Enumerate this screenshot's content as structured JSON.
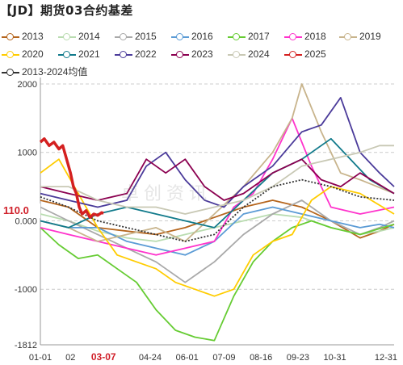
{
  "title": "【JD】期货03合约基差",
  "watermark": "卓创资讯",
  "current_value_label": "110.0",
  "chart_data": {
    "type": "line",
    "ylim": [
      -1812,
      2000
    ],
    "yticks": [
      "2000",
      "1000",
      "0.000",
      "-1000",
      "-1812"
    ],
    "ytick_values": [
      2000,
      1000,
      0,
      -1000,
      -1812
    ],
    "xticks": [
      "01-01",
      "02",
      "03-07",
      "04-24",
      "06-01",
      "07-09",
      "08-16",
      "09-23",
      "10-31",
      "12-31"
    ],
    "xtick_days": [
      1,
      32,
      66,
      114,
      152,
      190,
      228,
      266,
      304,
      365
    ],
    "highlight_xtick": "03-07",
    "grid": "horizontal-dashed",
    "series": [
      {
        "name": "2013",
        "color": "#b5651d",
        "points": [
          [
            1,
            300
          ],
          [
            30,
            200
          ],
          [
            60,
            -100
          ],
          [
            90,
            -150
          ],
          [
            120,
            -200
          ],
          [
            150,
            -100
          ],
          [
            180,
            50
          ],
          [
            210,
            200
          ],
          [
            240,
            300
          ],
          [
            270,
            200
          ],
          [
            300,
            0
          ],
          [
            330,
            -250
          ],
          [
            350,
            -150
          ],
          [
            365,
            -50
          ]
        ]
      },
      {
        "name": "2014",
        "color": "#b9dcb0",
        "points": [
          [
            1,
            100
          ],
          [
            30,
            0
          ],
          [
            60,
            -150
          ],
          [
            90,
            -250
          ],
          [
            120,
            -300
          ],
          [
            150,
            -200
          ],
          [
            180,
            -100
          ],
          [
            210,
            0
          ],
          [
            240,
            100
          ],
          [
            270,
            50
          ],
          [
            300,
            -100
          ],
          [
            330,
            -200
          ],
          [
            350,
            -150
          ],
          [
            365,
            -100
          ]
        ]
      },
      {
        "name": "2015",
        "color": "#a9a9a9",
        "points": [
          [
            1,
            200
          ],
          [
            30,
            0
          ],
          [
            60,
            -200
          ],
          [
            90,
            -400
          ],
          [
            120,
            -600
          ],
          [
            150,
            -900
          ],
          [
            180,
            -600
          ],
          [
            210,
            -200
          ],
          [
            240,
            100
          ],
          [
            270,
            300
          ],
          [
            300,
            0
          ],
          [
            330,
            -200
          ],
          [
            350,
            -100
          ],
          [
            365,
            0
          ]
        ]
      },
      {
        "name": "2016",
        "color": "#5b9bd5",
        "points": [
          [
            1,
            0
          ],
          [
            30,
            -100
          ],
          [
            60,
            -100
          ],
          [
            90,
            -300
          ],
          [
            120,
            -400
          ],
          [
            150,
            -500
          ],
          [
            180,
            -300
          ],
          [
            210,
            100
          ],
          [
            240,
            200
          ],
          [
            270,
            100
          ],
          [
            300,
            0
          ],
          [
            330,
            -100
          ],
          [
            350,
            -50
          ],
          [
            365,
            -100
          ]
        ]
      },
      {
        "name": "2017",
        "color": "#66cc33",
        "points": [
          [
            1,
            -100
          ],
          [
            20,
            -350
          ],
          [
            40,
            -550
          ],
          [
            60,
            -500
          ],
          [
            80,
            -700
          ],
          [
            100,
            -900
          ],
          [
            120,
            -1300
          ],
          [
            140,
            -1600
          ],
          [
            160,
            -1700
          ],
          [
            180,
            -1750
          ],
          [
            200,
            -1100
          ],
          [
            220,
            -600
          ],
          [
            240,
            -300
          ],
          [
            260,
            -100
          ],
          [
            280,
            0
          ],
          [
            300,
            -100
          ],
          [
            330,
            -200
          ],
          [
            365,
            -50
          ]
        ]
      },
      {
        "name": "2018",
        "color": "#ff33cc",
        "points": [
          [
            1,
            -100
          ],
          [
            30,
            -200
          ],
          [
            60,
            -300
          ],
          [
            90,
            -400
          ],
          [
            120,
            -500
          ],
          [
            150,
            -400
          ],
          [
            180,
            -300
          ],
          [
            200,
            200
          ],
          [
            220,
            400
          ],
          [
            240,
            900
          ],
          [
            260,
            1500
          ],
          [
            280,
            800
          ],
          [
            300,
            200
          ],
          [
            330,
            100
          ],
          [
            365,
            200
          ]
        ]
      },
      {
        "name": "2019",
        "color": "#c8b48c",
        "points": [
          [
            1,
            0
          ],
          [
            30,
            -100
          ],
          [
            60,
            -300
          ],
          [
            90,
            -200
          ],
          [
            120,
            -100
          ],
          [
            150,
            -300
          ],
          [
            180,
            100
          ],
          [
            210,
            500
          ],
          [
            240,
            1000
          ],
          [
            260,
            1500
          ],
          [
            270,
            2000
          ],
          [
            290,
            1300
          ],
          [
            310,
            700
          ],
          [
            330,
            600
          ],
          [
            365,
            400
          ]
        ]
      },
      {
        "name": "2020",
        "color": "#ffcc00",
        "points": [
          [
            1,
            700
          ],
          [
            20,
            900
          ],
          [
            40,
            400
          ],
          [
            60,
            -100
          ],
          [
            80,
            -500
          ],
          [
            100,
            -600
          ],
          [
            120,
            -700
          ],
          [
            140,
            -900
          ],
          [
            160,
            -1000
          ],
          [
            180,
            -1100
          ],
          [
            200,
            -1000
          ],
          [
            220,
            -500
          ],
          [
            240,
            -300
          ],
          [
            260,
            -200
          ],
          [
            280,
            300
          ],
          [
            300,
            500
          ],
          [
            330,
            400
          ],
          [
            365,
            100
          ]
        ]
      },
      {
        "name": "2021",
        "color": "#117a8b",
        "points": [
          [
            1,
            0
          ],
          [
            30,
            -100
          ],
          [
            60,
            100
          ],
          [
            90,
            200
          ],
          [
            120,
            100
          ],
          [
            150,
            0
          ],
          [
            180,
            -100
          ],
          [
            210,
            300
          ],
          [
            240,
            700
          ],
          [
            270,
            900
          ],
          [
            300,
            1200
          ],
          [
            320,
            900
          ],
          [
            340,
            600
          ],
          [
            365,
            400
          ]
        ]
      },
      {
        "name": "2022",
        "color": "#4b3b9a",
        "points": [
          [
            1,
            400
          ],
          [
            30,
            300
          ],
          [
            60,
            200
          ],
          [
            90,
            300
          ],
          [
            110,
            800
          ],
          [
            130,
            1000
          ],
          [
            150,
            600
          ],
          [
            170,
            300
          ],
          [
            190,
            200
          ],
          [
            210,
            500
          ],
          [
            240,
            800
          ],
          [
            270,
            1300
          ],
          [
            290,
            1400
          ],
          [
            310,
            1800
          ],
          [
            330,
            1000
          ],
          [
            350,
            700
          ],
          [
            365,
            500
          ]
        ]
      },
      {
        "name": "2023",
        "color": "#8b0050",
        "points": [
          [
            1,
            500
          ],
          [
            30,
            400
          ],
          [
            60,
            300
          ],
          [
            90,
            400
          ],
          [
            110,
            900
          ],
          [
            130,
            700
          ],
          [
            150,
            900
          ],
          [
            170,
            500
          ],
          [
            190,
            300
          ],
          [
            210,
            400
          ],
          [
            240,
            700
          ],
          [
            270,
            900
          ],
          [
            290,
            600
          ],
          [
            310,
            500
          ],
          [
            330,
            700
          ],
          [
            365,
            400
          ]
        ]
      },
      {
        "name": "2024",
        "color": "#c8c8b4",
        "points": [
          [
            1,
            500
          ],
          [
            30,
            500
          ],
          [
            60,
            300
          ],
          [
            90,
            200
          ],
          [
            120,
            200
          ],
          [
            150,
            100
          ],
          [
            180,
            200
          ],
          [
            210,
            300
          ],
          [
            240,
            500
          ],
          [
            270,
            800
          ],
          [
            300,
            900
          ],
          [
            330,
            1000
          ],
          [
            350,
            1100
          ],
          [
            365,
            1100
          ]
        ]
      },
      {
        "name": "2025",
        "color": "#d42020",
        "bold": true,
        "points": [
          [
            1,
            1150
          ],
          [
            5,
            1200
          ],
          [
            10,
            1100
          ],
          [
            15,
            1150
          ],
          [
            20,
            1050
          ],
          [
            24,
            1100
          ],
          [
            28,
            900
          ],
          [
            32,
            700
          ],
          [
            35,
            500
          ],
          [
            38,
            400
          ],
          [
            41,
            200
          ],
          [
            44,
            100
          ],
          [
            48,
            150
          ],
          [
            52,
            50
          ],
          [
            56,
            100
          ],
          [
            60,
            80
          ],
          [
            64,
            120
          ],
          [
            66,
            110
          ]
        ]
      },
      {
        "name": "2013-2024均值",
        "color": "#333333",
        "dotted": true,
        "points": [
          [
            1,
            350
          ],
          [
            30,
            200
          ],
          [
            60,
            0
          ],
          [
            90,
            -100
          ],
          [
            120,
            -200
          ],
          [
            150,
            -300
          ],
          [
            180,
            -200
          ],
          [
            210,
            200
          ],
          [
            240,
            500
          ],
          [
            270,
            600
          ],
          [
            300,
            500
          ],
          [
            330,
            350
          ],
          [
            365,
            300
          ]
        ]
      }
    ]
  }
}
